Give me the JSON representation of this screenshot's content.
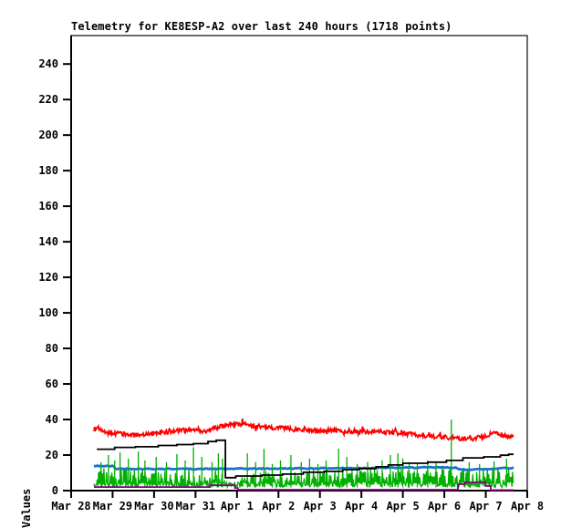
{
  "chart_data": {
    "type": "line",
    "title": "Telemetry for KE8ESP-A2 over last 240 hours (1718 points)",
    "xlabel": "",
    "ylabel": "Values",
    "ylim": [
      0,
      256
    ],
    "yticks": [
      0,
      20,
      40,
      60,
      80,
      100,
      120,
      140,
      160,
      180,
      200,
      220,
      240
    ],
    "xtick_labels": [
      "Mar 28",
      "Mar 29",
      "Mar 30",
      "Mar 31",
      "Apr 1",
      "Apr 2",
      "Apr 3",
      "Apr 4",
      "Apr 5",
      "Apr 6",
      "Apr 7",
      "Apr 8"
    ],
    "x_domain_days": [
      0,
      11
    ],
    "data_span_days": [
      0.55,
      10.67
    ],
    "grid": false,
    "legend": "none",
    "series": [
      {
        "name": "red-channel",
        "color": "#ff0000",
        "style": "noisy",
        "noise": 1.25,
        "points": [
          [
            0.55,
            34.5
          ],
          [
            0.62,
            35.8
          ],
          [
            0.75,
            33.0
          ],
          [
            0.95,
            32.3
          ],
          [
            1.2,
            31.8
          ],
          [
            1.5,
            31.2
          ],
          [
            1.8,
            31.8
          ],
          [
            2.1,
            32.4
          ],
          [
            2.4,
            33.3
          ],
          [
            2.7,
            33.9
          ],
          [
            3.0,
            34.1
          ],
          [
            3.2,
            33.5
          ],
          [
            3.45,
            35.0
          ],
          [
            3.7,
            36.6
          ],
          [
            3.95,
            37.4
          ],
          [
            4.2,
            37.2
          ],
          [
            4.5,
            36.2
          ],
          [
            5.0,
            35.4
          ],
          [
            5.5,
            34.4
          ],
          [
            6.0,
            34.0
          ],
          [
            6.5,
            33.7
          ],
          [
            7.0,
            33.3
          ],
          [
            7.5,
            32.9
          ],
          [
            8.0,
            32.4
          ],
          [
            8.5,
            30.9
          ],
          [
            9.0,
            30.0
          ],
          [
            9.3,
            29.4
          ],
          [
            9.6,
            28.9
          ],
          [
            9.9,
            30.2
          ],
          [
            10.2,
            32.6
          ],
          [
            10.45,
            31.0
          ],
          [
            10.6,
            29.9
          ],
          [
            10.67,
            30.6
          ]
        ]
      },
      {
        "name": "green-channel",
        "color": "#00b000",
        "style": "band",
        "bottom": 1.8,
        "top_points": [
          [
            0.55,
            13.5
          ],
          [
            1.8,
            12.5
          ],
          [
            3.6,
            12.5
          ],
          [
            3.72,
            5.0
          ],
          [
            4.05,
            5.0
          ],
          [
            4.15,
            12.0
          ],
          [
            6.0,
            12.0
          ],
          [
            8.0,
            12.5
          ],
          [
            9.3,
            13.0
          ],
          [
            10.67,
            13.0
          ]
        ],
        "spikes": [
          [
            0.72,
            16
          ],
          [
            0.9,
            20
          ],
          [
            1.05,
            17
          ],
          [
            1.18,
            21.5
          ],
          [
            1.38,
            18
          ],
          [
            1.62,
            22
          ],
          [
            1.78,
            17
          ],
          [
            2.05,
            19
          ],
          [
            2.3,
            16
          ],
          [
            2.55,
            20.5
          ],
          [
            2.75,
            17
          ],
          [
            2.95,
            24.5
          ],
          [
            3.15,
            19
          ],
          [
            3.4,
            16
          ],
          [
            3.55,
            21
          ],
          [
            3.65,
            18
          ],
          [
            4.25,
            21
          ],
          [
            4.45,
            16
          ],
          [
            4.65,
            23.5
          ],
          [
            4.85,
            15
          ],
          [
            5.05,
            17
          ],
          [
            5.3,
            20
          ],
          [
            5.55,
            16
          ],
          [
            5.75,
            18
          ],
          [
            5.95,
            15
          ],
          [
            6.15,
            17
          ],
          [
            6.45,
            23.6
          ],
          [
            6.65,
            19
          ],
          [
            6.9,
            15
          ],
          [
            7.15,
            16
          ],
          [
            7.5,
            17
          ],
          [
            7.7,
            20
          ],
          [
            7.88,
            21
          ],
          [
            8.0,
            18
          ],
          [
            8.15,
            16
          ],
          [
            8.35,
            15
          ],
          [
            8.6,
            17
          ],
          [
            8.8,
            15.5
          ],
          [
            9.17,
            40
          ],
          [
            9.6,
            16
          ],
          [
            9.85,
            15
          ],
          [
            10.2,
            16.5
          ],
          [
            10.5,
            18
          ]
        ]
      },
      {
        "name": "blue-channel",
        "color": "#1a70d0",
        "style": "noisy",
        "noise": 0.3,
        "points": [
          [
            0.55,
            13.8
          ],
          [
            1.02,
            13.8
          ],
          [
            1.06,
            12.3
          ],
          [
            3.0,
            12.2
          ],
          [
            5.0,
            12.4
          ],
          [
            7.0,
            12.7
          ],
          [
            8.5,
            13.0
          ],
          [
            9.28,
            13.0
          ],
          [
            9.34,
            11.8
          ],
          [
            10.1,
            12.1
          ],
          [
            10.4,
            12.8
          ],
          [
            10.67,
            12.8
          ]
        ]
      },
      {
        "name": "black-channel",
        "color": "#000000",
        "style": "step",
        "points": [
          [
            0.62,
            23.3
          ],
          [
            1.05,
            23.3
          ],
          [
            1.05,
            24.3
          ],
          [
            1.55,
            24.3
          ],
          [
            1.55,
            24.7
          ],
          [
            2.1,
            24.7
          ],
          [
            2.1,
            25.4
          ],
          [
            2.55,
            25.4
          ],
          [
            2.55,
            25.9
          ],
          [
            2.95,
            25.9
          ],
          [
            2.95,
            26.4
          ],
          [
            3.3,
            26.4
          ],
          [
            3.3,
            27.6
          ],
          [
            3.5,
            27.6
          ],
          [
            3.5,
            28.3
          ],
          [
            3.72,
            28.3
          ],
          [
            3.72,
            7.3
          ],
          [
            3.97,
            7.3
          ],
          [
            3.97,
            8.2
          ],
          [
            4.6,
            8.2
          ],
          [
            4.6,
            8.7
          ],
          [
            5.1,
            8.7
          ],
          [
            5.1,
            9.3
          ],
          [
            5.6,
            9.3
          ],
          [
            5.6,
            10.3
          ],
          [
            6.1,
            10.3
          ],
          [
            6.1,
            10.8
          ],
          [
            6.55,
            10.8
          ],
          [
            6.55,
            11.8
          ],
          [
            6.95,
            11.8
          ],
          [
            6.95,
            12.4
          ],
          [
            7.35,
            12.4
          ],
          [
            7.35,
            13.4
          ],
          [
            7.65,
            13.4
          ],
          [
            7.65,
            14.4
          ],
          [
            8.0,
            14.4
          ],
          [
            8.0,
            15.4
          ],
          [
            8.6,
            15.4
          ],
          [
            8.6,
            16.0
          ],
          [
            9.05,
            16.0
          ],
          [
            9.05,
            17.0
          ],
          [
            9.45,
            17.0
          ],
          [
            9.45,
            18.4
          ],
          [
            9.95,
            18.4
          ],
          [
            9.95,
            19.0
          ],
          [
            10.35,
            19.0
          ],
          [
            10.35,
            19.9
          ],
          [
            10.55,
            19.9
          ],
          [
            10.55,
            20.4
          ],
          [
            10.67,
            20.4
          ]
        ]
      },
      {
        "name": "purple-channel",
        "color": "#800080",
        "style": "step",
        "points": [
          [
            0.55,
            2.0
          ],
          [
            3.35,
            2.0
          ],
          [
            3.35,
            3.0
          ],
          [
            3.95,
            3.0
          ],
          [
            3.95,
            1.5
          ],
          [
            4.02,
            1.5
          ],
          [
            4.02,
            0.5
          ],
          [
            9.33,
            0.5
          ],
          [
            9.33,
            3.6
          ],
          [
            9.5,
            3.6
          ],
          [
            9.5,
            4.6
          ],
          [
            10.0,
            4.6
          ],
          [
            10.0,
            2.6
          ],
          [
            10.12,
            2.6
          ],
          [
            10.12,
            0.3
          ],
          [
            10.67,
            0.3
          ]
        ]
      }
    ]
  }
}
